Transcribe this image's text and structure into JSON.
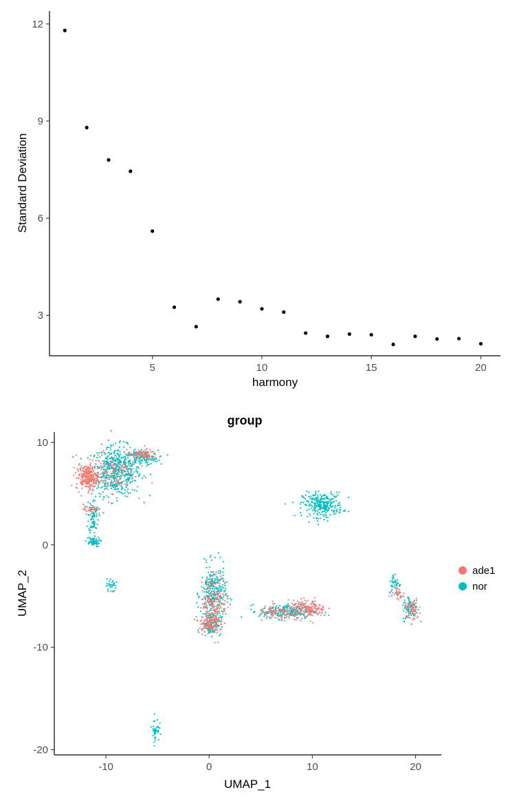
{
  "chart_data": [
    {
      "type": "scatter",
      "title": "",
      "xlabel": "harmony",
      "ylabel": "Standard Deviation",
      "xlim": [
        0.3,
        20.9
      ],
      "ylim": [
        1.75,
        12.4
      ],
      "xticks": [
        5,
        10,
        15,
        20
      ],
      "yticks": [
        3,
        6,
        9,
        12
      ],
      "grid": false,
      "point_color": "#000000",
      "x": [
        1,
        2,
        3,
        4,
        5,
        6,
        7,
        8,
        9,
        10,
        11,
        12,
        13,
        14,
        15,
        16,
        17,
        18,
        19,
        20
      ],
      "y": [
        11.8,
        8.8,
        7.8,
        7.45,
        5.6,
        3.25,
        2.65,
        3.5,
        3.42,
        3.2,
        3.1,
        2.45,
        2.35,
        2.42,
        2.4,
        2.1,
        2.35,
        2.27,
        2.28,
        2.12
      ]
    },
    {
      "type": "scatter",
      "title": "group",
      "xlabel": "UMAP_1",
      "ylabel": "UMAP_2",
      "xlim": [
        -15,
        22.5
      ],
      "ylim": [
        -20.5,
        11
      ],
      "xticks": [
        -10,
        0,
        10,
        20
      ],
      "yticks": [
        -20,
        -10,
        0,
        10
      ],
      "grid": false,
      "legend": {
        "position": "right",
        "entries": [
          {
            "name": "ade1",
            "color": "#F8766D"
          },
          {
            "name": "nor",
            "color": "#00BFC4"
          }
        ]
      },
      "series": [
        {
          "name": "ade1",
          "color": "#F8766D",
          "clusters": [
            {
              "center": [
                -11.8,
                6.6
              ],
              "spread": [
                0.9,
                1.0
              ],
              "weight": 0.45
            },
            {
              "center": [
                -9.5,
                7.0
              ],
              "spread": [
                2.0,
                1.6
              ],
              "weight": 0.25
            },
            {
              "center": [
                -6.5,
                8.8
              ],
              "spread": [
                1.2,
                0.4
              ],
              "weight": 0.15
            },
            {
              "center": [
                -11.5,
                3.5
              ],
              "spread": [
                0.6,
                0.4
              ],
              "weight": 0.06
            },
            {
              "center": [
                0.5,
                -5.5
              ],
              "spread": [
                1.0,
                2.2
              ],
              "weight": 0.35
            },
            {
              "center": [
                0.0,
                -7.7
              ],
              "spread": [
                0.8,
                0.8
              ],
              "weight": 0.2
            },
            {
              "center": [
                9.5,
                -6.3
              ],
              "spread": [
                1.5,
                0.7
              ],
              "weight": 0.35
            },
            {
              "center": [
                6.5,
                -6.7
              ],
              "spread": [
                1.4,
                0.6
              ],
              "weight": 0.15
            },
            {
              "center": [
                19.6,
                -6.3
              ],
              "spread": [
                0.6,
                0.9
              ],
              "weight": 0.12
            },
            {
              "center": [
                18.3,
                -4.6
              ],
              "spread": [
                0.5,
                0.6
              ],
              "weight": 0.05
            }
          ]
        },
        {
          "name": "nor",
          "color": "#00BFC4",
          "clusters": [
            {
              "center": [
                -9.0,
                7.2
              ],
              "spread": [
                2.0,
                2.0
              ],
              "weight": 1.0
            },
            {
              "center": [
                -6.5,
                8.5
              ],
              "spread": [
                1.3,
                0.6
              ],
              "weight": 0.25
            },
            {
              "center": [
                -11.2,
                2.8
              ],
              "spread": [
                0.4,
                1.4
              ],
              "weight": 0.15
            },
            {
              "center": [
                -11.3,
                0.3
              ],
              "spread": [
                0.6,
                0.4
              ],
              "weight": 0.12
            },
            {
              "center": [
                -9.5,
                -4.0
              ],
              "spread": [
                0.4,
                0.6
              ],
              "weight": 0.06
            },
            {
              "center": [
                11.0,
                3.9
              ],
              "spread": [
                1.6,
                1.0
              ],
              "weight": 0.55
            },
            {
              "center": [
                0.4,
                -4.8
              ],
              "spread": [
                1.0,
                2.3
              ],
              "weight": 0.55
            },
            {
              "center": [
                0.2,
                -7.7
              ],
              "spread": [
                0.8,
                0.9
              ],
              "weight": 0.2
            },
            {
              "center": [
                7.5,
                -6.5
              ],
              "spread": [
                2.2,
                0.6
              ],
              "weight": 0.45
            },
            {
              "center": [
                19.5,
                -6.2
              ],
              "spread": [
                0.6,
                1.0
              ],
              "weight": 0.15
            },
            {
              "center": [
                18.0,
                -3.8
              ],
              "spread": [
                0.5,
                0.9
              ],
              "weight": 0.08
            },
            {
              "center": [
                -5.2,
                -18.0
              ],
              "spread": [
                0.3,
                1.0
              ],
              "weight": 0.08
            }
          ]
        }
      ]
    }
  ]
}
